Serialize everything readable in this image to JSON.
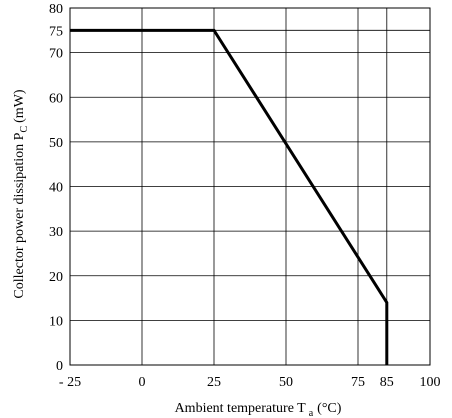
{
  "chart_data": {
    "type": "line",
    "title": "",
    "xlabel": {
      "prefix": "Ambient temperature T",
      "subscript": "a",
      "suffix": "(°C)"
    },
    "ylabel": {
      "prefix": "Collector power dissipation P",
      "subscript": "C",
      "suffix": "(mW)"
    },
    "xlim": [
      -25,
      100
    ],
    "ylim": [
      0,
      80
    ],
    "x_ticks": [
      -25,
      0,
      25,
      50,
      75,
      85,
      100
    ],
    "x_tick_labels": [
      "- 25",
      "0",
      "25",
      "50",
      "75",
      "85",
      "100"
    ],
    "y_ticks": [
      0,
      10,
      20,
      30,
      40,
      50,
      60,
      70,
      75,
      80
    ],
    "y_tick_labels": [
      "0",
      "10",
      "20",
      "30",
      "40",
      "50",
      "60",
      "70",
      "75",
      "80"
    ],
    "x_grid": [
      0,
      25,
      50,
      75,
      85
    ],
    "y_grid": [
      10,
      20,
      30,
      40,
      50,
      60,
      70,
      75
    ],
    "grid": true,
    "series": [
      {
        "x": [
          -25,
          25,
          85,
          85
        ],
        "y": [
          75,
          75,
          14,
          0
        ],
        "color": "#000000"
      }
    ]
  }
}
